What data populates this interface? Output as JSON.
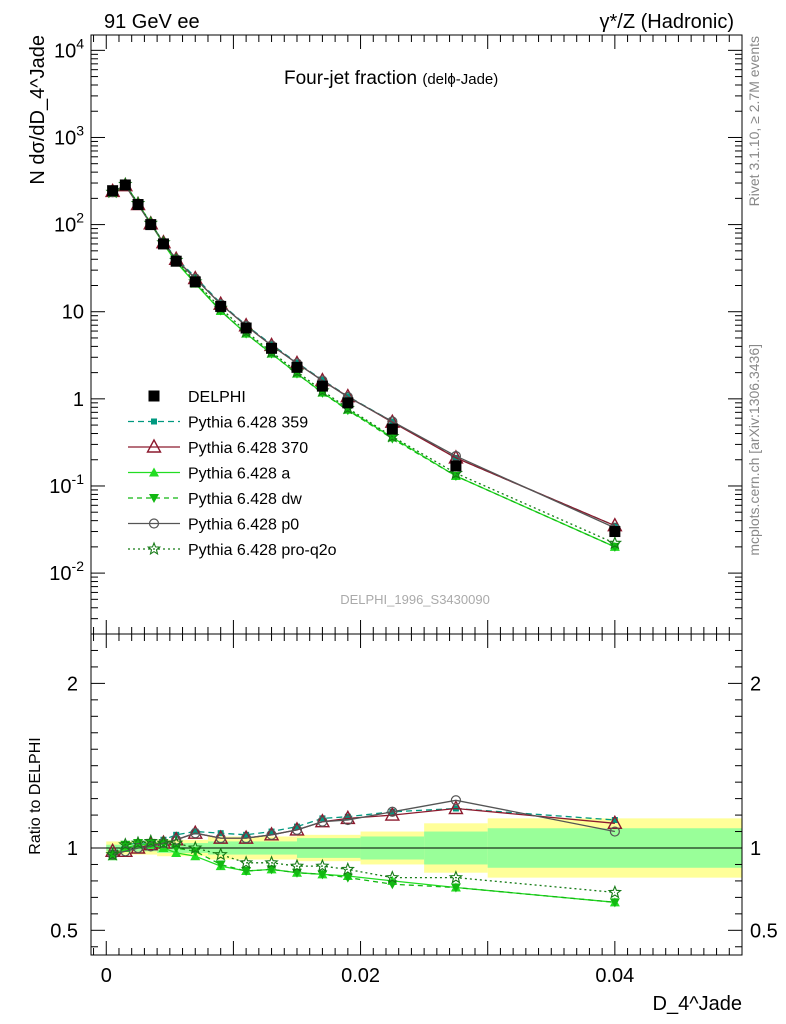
{
  "header": {
    "left": "91 GeV ee",
    "right": "γ*/Z (Hadronic)"
  },
  "plot": {
    "title": "Four-jet fraction",
    "title_sub": "(delϕ-Jade)",
    "watermark": "DELPHI_1996_S3430090",
    "ylabel_top": "N dσ/dD_4^Jade",
    "ylabel_bottom": "Ratio to DELPHI",
    "xlabel": "D_4^Jade",
    "side_top": "Rivet 3.1.10, ≥ 2.7M events",
    "side_bottom": "mcplots.cern.ch [arXiv:1306.3436]"
  },
  "chart_data": {
    "type": "line",
    "x": [
      0.0005,
      0.0015,
      0.0025,
      0.0035,
      0.0045,
      0.0055,
      0.007,
      0.009,
      0.011,
      0.013,
      0.015,
      0.017,
      0.019,
      0.0225,
      0.0275,
      0.04
    ],
    "top": {
      "yscale": "log",
      "ylim": [
        0.002,
        15000
      ],
      "yticks": [
        {
          "v": 0.01,
          "label": "10^-2"
        },
        {
          "v": 0.1,
          "label": "10^-1"
        },
        {
          "v": 1,
          "label": "1"
        },
        {
          "v": 10,
          "label": "10"
        },
        {
          "v": 100,
          "label": "10^2"
        },
        {
          "v": 1000,
          "label": "10^3"
        },
        {
          "v": 10000,
          "label": "10^4"
        }
      ],
      "data": {
        "name": "DELPHI",
        "values": [
          245,
          285,
          170,
          100,
          60,
          38,
          22,
          11.5,
          6.5,
          3.8,
          2.3,
          1.4,
          0.9,
          0.45,
          0.17,
          0.03
        ]
      },
      "series": [
        {
          "name": "Pythia 6.428 359",
          "color": "#009980",
          "dash": "6,4",
          "marker": "sq-small",
          "values": [
            238,
            290,
            175,
            103,
            63,
            41,
            25,
            12.5,
            7.0,
            4.2,
            2.6,
            1.65,
            1.07,
            0.55,
            0.21,
            0.035
          ]
        },
        {
          "name": "Pythia 6.428 370",
          "color": "#8c1a2e",
          "dash": "",
          "marker": "tri-open",
          "values": [
            240,
            280,
            170,
            102,
            62,
            40,
            24,
            12.2,
            6.9,
            4.1,
            2.55,
            1.62,
            1.06,
            0.54,
            0.21,
            0.035
          ]
        },
        {
          "name": "Pythia 6.428 a",
          "color": "#22dd22",
          "dash": "",
          "marker": "tri-up",
          "values": [
            233,
            285,
            173,
            102,
            60,
            37,
            21,
            10.2,
            5.6,
            3.3,
            1.95,
            1.18,
            0.75,
            0.36,
            0.13,
            0.02
          ]
        },
        {
          "name": "Pythia 6.428 dw",
          "color": "#12b812",
          "dash": "5,4",
          "marker": "tri-down",
          "values": [
            236,
            290,
            175,
            103,
            62,
            38,
            21.5,
            10.3,
            5.6,
            3.3,
            1.95,
            1.17,
            0.74,
            0.35,
            0.13,
            0.02
          ]
        },
        {
          "name": "Pythia 6.428 p0",
          "color": "#555555",
          "dash": "",
          "marker": "circ-open",
          "values": [
            236,
            280,
            170,
            101,
            62,
            40,
            24,
            12.2,
            6.9,
            4.1,
            2.55,
            1.62,
            1.05,
            0.55,
            0.22,
            0.033
          ]
        },
        {
          "name": "Pythia 6.428 pro-q2o",
          "color": "#157a15",
          "dash": "2,3",
          "marker": "star",
          "values": [
            236,
            290,
            175,
            104,
            62,
            39,
            22,
            11,
            5.9,
            3.45,
            2.05,
            1.24,
            0.78,
            0.37,
            0.14,
            0.022
          ]
        }
      ]
    },
    "bottom": {
      "yscale": "linear",
      "ylim": [
        0.35,
        2.3
      ],
      "yticks": [
        0.5,
        1,
        2
      ],
      "ytick_labels": [
        "0.5",
        "1",
        "2"
      ],
      "ratios": [
        [
          0.97,
          1.02,
          1.03,
          1.03,
          1.05,
          1.08,
          1.1,
          1.09,
          1.08,
          1.1,
          1.13,
          1.18,
          1.19,
          1.22,
          1.24,
          1.17
        ],
        [
          0.98,
          0.98,
          1.0,
          1.02,
          1.03,
          1.05,
          1.09,
          1.06,
          1.06,
          1.08,
          1.11,
          1.16,
          1.18,
          1.2,
          1.24,
          1.15
        ],
        [
          0.95,
          1.0,
          1.02,
          1.02,
          1.0,
          0.97,
          0.95,
          0.89,
          0.86,
          0.87,
          0.85,
          0.84,
          0.83,
          0.8,
          0.76,
          0.67
        ],
        [
          0.96,
          1.02,
          1.03,
          1.03,
          1.03,
          1.0,
          0.98,
          0.9,
          0.86,
          0.87,
          0.85,
          0.84,
          0.82,
          0.78,
          0.76,
          0.67
        ],
        [
          0.96,
          0.98,
          1.0,
          1.01,
          1.03,
          1.05,
          1.09,
          1.06,
          1.06,
          1.08,
          1.11,
          1.16,
          1.17,
          1.22,
          1.29,
          1.1
        ],
        [
          0.96,
          1.02,
          1.03,
          1.04,
          1.03,
          1.03,
          1.0,
          0.96,
          0.91,
          0.91,
          0.89,
          0.89,
          0.87,
          0.82,
          0.82,
          0.73
        ]
      ],
      "bands": [
        {
          "x0": 0.0,
          "x1": 0.004,
          "green": 0.02,
          "yellow": 0.04
        },
        {
          "x0": 0.004,
          "x1": 0.008,
          "green": 0.03,
          "yellow": 0.05
        },
        {
          "x0": 0.008,
          "x1": 0.015,
          "green": 0.04,
          "yellow": 0.07
        },
        {
          "x0": 0.015,
          "x1": 0.02,
          "green": 0.06,
          "yellow": 0.08
        },
        {
          "x0": 0.02,
          "x1": 0.025,
          "green": 0.07,
          "yellow": 0.1
        },
        {
          "x0": 0.025,
          "x1": 0.03,
          "green": 0.1,
          "yellow": 0.15
        },
        {
          "x0": 0.03,
          "x1": 0.05,
          "green": 0.12,
          "yellow": 0.18
        }
      ]
    },
    "xlim": [
      -0.0012,
      0.05
    ],
    "xticks": [
      0,
      0.02,
      0.04
    ],
    "xtick_labels": [
      "0",
      "0.02",
      "0.04"
    ]
  }
}
